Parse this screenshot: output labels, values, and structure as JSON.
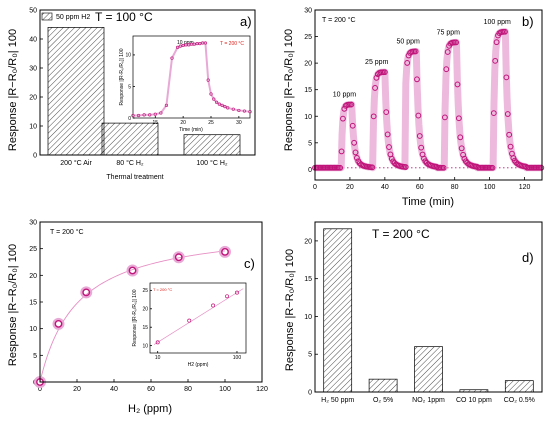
{
  "colors": {
    "magenta": "#c0157a",
    "magenta_light": "#e8a9d6",
    "inset_red": "#e0201b",
    "fit": "#e68fc4"
  },
  "chart_data": [
    {
      "id": "a",
      "type": "bar",
      "panel_label": "a)",
      "title": "T = 100 °C",
      "legend": "50 ppm H2",
      "legend_placement": "top-left",
      "xlabel": "Thermal treatment",
      "ylabel": "Response |R−R₀/R₀| 100",
      "categories": [
        "200 °C Air",
        "80 °C H₂",
        "100 °C H₂"
      ],
      "values": [
        44,
        11,
        7
      ],
      "ylim": [
        0,
        50
      ],
      "yticks": [
        "0",
        "10",
        "20",
        "30",
        "40",
        "50"
      ],
      "inset": {
        "type": "line",
        "title": "T = 200 °C",
        "annotation": "10 ppm",
        "ylabel": "Response |[R-R₀/R₀]| 100",
        "xlabel": "Time (min)",
        "xlim": [
          11,
          32
        ],
        "ylim": [
          0,
          13
        ],
        "xticks": [
          "15",
          "20",
          "25",
          "30"
        ],
        "yticks": [
          "0",
          "5",
          "10"
        ],
        "x": [
          11,
          12,
          13,
          14,
          15,
          16,
          17,
          18,
          19,
          19.5,
          20,
          20.5,
          21,
          21.5,
          22,
          22.5,
          23,
          23.5,
          24,
          24.5,
          25,
          25.5,
          26,
          26.5,
          27,
          27.5,
          28,
          29,
          30,
          31,
          32
        ],
        "y": [
          0.4,
          0.4,
          0.5,
          0.5,
          0.6,
          0.8,
          2,
          9.5,
          11.2,
          11.4,
          11.5,
          11.6,
          11.6,
          11.7,
          11.7,
          11.8,
          11.8,
          11.9,
          11.9,
          6,
          3.8,
          3,
          2.5,
          2.2,
          2,
          1.8,
          1.6,
          1.4,
          1.2,
          1.1,
          1
        ]
      }
    },
    {
      "id": "b",
      "type": "line",
      "panel_label": "b)",
      "title": "T = 200 °C",
      "xlabel": "Time (min)",
      "ylabel": "Response |R−R₀/R₀| 100",
      "xlim": [
        0,
        130
      ],
      "ylim": [
        -2,
        30
      ],
      "xticks": [
        "0",
        "20",
        "40",
        "60",
        "80",
        "100",
        "120"
      ],
      "yticks": [
        "0",
        "5",
        "10",
        "15",
        "20",
        "25",
        "30"
      ],
      "baseline": 0.3,
      "pulses": [
        {
          "label": "10 ppm",
          "start": 15,
          "end": 21,
          "peak": 12.2
        },
        {
          "label": "25 ppm",
          "start": 33,
          "end": 40,
          "peak": 18.3
        },
        {
          "label": "50 ppm",
          "start": 51,
          "end": 58,
          "peak": 22.2
        },
        {
          "label": "75 ppm",
          "start": 74,
          "end": 81,
          "peak": 23.9
        },
        {
          "label": "100 ppm",
          "start": 102,
          "end": 109,
          "peak": 25.9
        }
      ]
    },
    {
      "id": "c",
      "type": "scatter",
      "panel_label": "c)",
      "title": "T = 200 °C",
      "xlabel": "H₂ (ppm)",
      "ylabel": "Response |R−R₀/R₀| 100",
      "xlim": [
        0,
        120
      ],
      "ylim": [
        0,
        30
      ],
      "xticks": [
        "0",
        "20",
        "40",
        "60",
        "80",
        "100",
        "120"
      ],
      "yticks": [
        "0",
        "5",
        "10",
        "15",
        "20",
        "25",
        "30"
      ],
      "x": [
        0,
        10,
        25,
        50,
        75,
        100
      ],
      "y": [
        0,
        10.9,
        16.8,
        20.9,
        23.4,
        24.4
      ],
      "inset": {
        "type": "scatter",
        "title": "T = 200 °C",
        "xscale": "log",
        "xlabel": "H2 (ppm)",
        "ylabel": "Response |[R-R₀/R₀]| 100",
        "xlim": [
          8,
          130
        ],
        "ylim": [
          8,
          27
        ],
        "xticks": [
          "10",
          "100"
        ],
        "yticks": [
          "10",
          "15",
          "20",
          "25"
        ],
        "x": [
          10,
          25,
          50,
          75,
          100
        ],
        "y": [
          10.9,
          16.8,
          20.9,
          23.4,
          24.4
        ]
      }
    },
    {
      "id": "d",
      "type": "bar",
      "panel_label": "d)",
      "title": "T = 200 °C",
      "ylabel": "Response |R−R₀/R₀| 100",
      "categories": [
        "H₂ 50 ppm",
        "O₂ 5%",
        "NO₂ 1ppm",
        "CO 10 ppm",
        "CO₂ 0.5%"
      ],
      "values": [
        21.6,
        1.7,
        6.0,
        0.3,
        1.5
      ],
      "ylim": [
        0,
        22.5
      ],
      "yticks": [
        "0",
        "5",
        "10",
        "15",
        "20"
      ]
    }
  ]
}
